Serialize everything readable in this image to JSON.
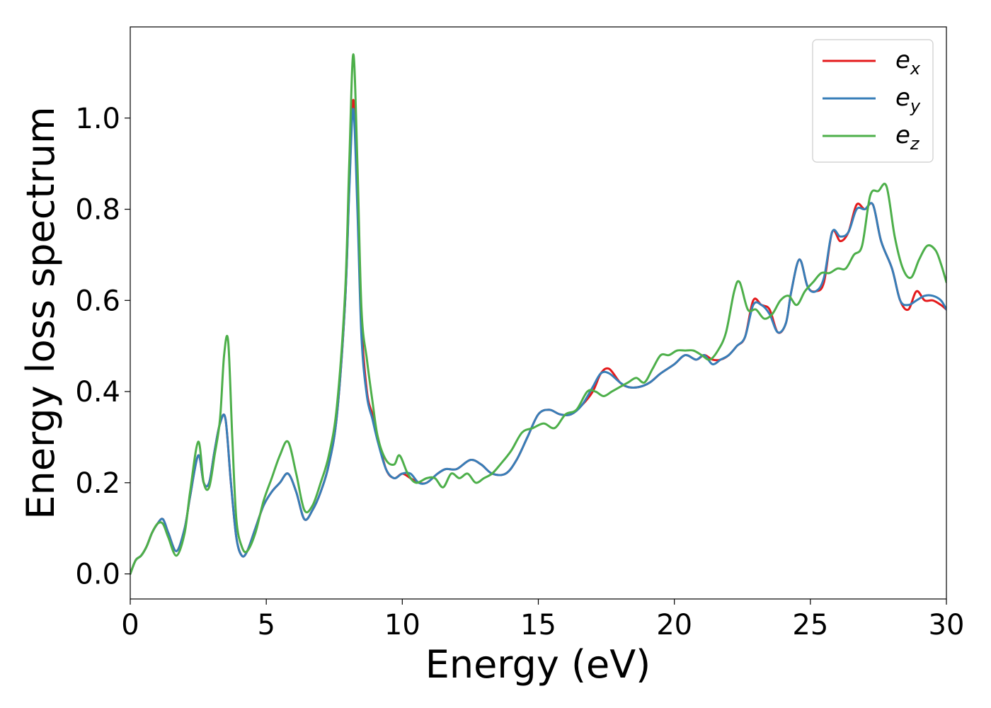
{
  "chart_data": {
    "type": "line",
    "xlabel": "Energy (eV)",
    "ylabel": "Energy loss spectrum",
    "xlim": [
      0,
      30
    ],
    "ylim": [
      -0.055,
      1.2
    ],
    "xticks": [
      0,
      5,
      10,
      15,
      20,
      25,
      30
    ],
    "xtick_labels": [
      "0",
      "5",
      "10",
      "15",
      "20",
      "25",
      "30"
    ],
    "yticks": [
      0.0,
      0.2,
      0.4,
      0.6,
      0.8,
      1.0
    ],
    "ytick_labels": [
      "0.0",
      "0.2",
      "0.4",
      "0.6",
      "0.8",
      "1.0"
    ],
    "grid": false,
    "legend_position": "top-right",
    "series": [
      {
        "name": "e",
        "sub": "x",
        "color": "#e41a1c",
        "x": [
          0,
          0.2,
          0.4,
          0.6,
          0.8,
          1.0,
          1.2,
          1.4,
          1.7,
          2.0,
          2.2,
          2.5,
          2.7,
          2.9,
          3.1,
          3.3,
          3.5,
          3.7,
          3.9,
          4.1,
          4.3,
          4.6,
          4.9,
          5.2,
          5.5,
          5.8,
          6.1,
          6.4,
          6.7,
          7.0,
          7.3,
          7.6,
          7.9,
          8.05,
          8.2,
          8.35,
          8.5,
          8.7,
          8.9,
          9.1,
          9.4,
          9.7,
          10.0,
          10.3,
          10.6,
          10.9,
          11.3,
          11.6,
          12.0,
          12.5,
          12.9,
          13.3,
          13.8,
          14.2,
          14.6,
          15.0,
          15.4,
          15.8,
          16.2,
          16.6,
          17.0,
          17.3,
          17.6,
          18.0,
          18.3,
          18.7,
          19.1,
          19.5,
          20.0,
          20.4,
          20.8,
          21.1,
          21.4,
          21.7,
          22.0,
          22.3,
          22.6,
          22.9,
          23.2,
          23.5,
          23.8,
          24.1,
          24.3,
          24.6,
          24.9,
          25.2,
          25.5,
          25.8,
          26.1,
          26.4,
          26.7,
          27.0,
          27.3,
          27.6,
          28.0,
          28.3,
          28.6,
          28.9,
          29.2,
          29.5,
          29.8,
          30.0
        ],
        "y": [
          0.0,
          0.03,
          0.04,
          0.06,
          0.09,
          0.11,
          0.12,
          0.09,
          0.05,
          0.1,
          0.17,
          0.26,
          0.2,
          0.2,
          0.27,
          0.33,
          0.34,
          0.2,
          0.08,
          0.04,
          0.05,
          0.1,
          0.15,
          0.18,
          0.2,
          0.22,
          0.18,
          0.12,
          0.14,
          0.18,
          0.24,
          0.35,
          0.6,
          0.85,
          1.04,
          0.85,
          0.55,
          0.4,
          0.35,
          0.3,
          0.23,
          0.21,
          0.22,
          0.21,
          0.2,
          0.2,
          0.22,
          0.23,
          0.23,
          0.25,
          0.24,
          0.22,
          0.22,
          0.25,
          0.3,
          0.35,
          0.36,
          0.35,
          0.35,
          0.37,
          0.4,
          0.44,
          0.45,
          0.42,
          0.41,
          0.41,
          0.42,
          0.44,
          0.46,
          0.48,
          0.47,
          0.48,
          0.47,
          0.47,
          0.48,
          0.5,
          0.52,
          0.6,
          0.59,
          0.58,
          0.53,
          0.55,
          0.62,
          0.69,
          0.63,
          0.62,
          0.64,
          0.75,
          0.73,
          0.75,
          0.81,
          0.8,
          0.81,
          0.73,
          0.67,
          0.6,
          0.58,
          0.62,
          0.6,
          0.6,
          0.59,
          0.58
        ]
      },
      {
        "name": "e",
        "sub": "y",
        "color": "#377eb8",
        "x": [
          0,
          0.2,
          0.4,
          0.6,
          0.8,
          1.0,
          1.2,
          1.4,
          1.7,
          2.0,
          2.2,
          2.5,
          2.7,
          2.9,
          3.1,
          3.3,
          3.5,
          3.7,
          3.9,
          4.1,
          4.3,
          4.6,
          4.9,
          5.2,
          5.5,
          5.8,
          6.1,
          6.4,
          6.7,
          7.0,
          7.3,
          7.6,
          7.9,
          8.05,
          8.2,
          8.35,
          8.5,
          8.7,
          8.9,
          9.1,
          9.4,
          9.7,
          10.0,
          10.3,
          10.6,
          10.9,
          11.3,
          11.6,
          12.0,
          12.5,
          12.9,
          13.3,
          13.8,
          14.2,
          14.6,
          15.0,
          15.4,
          15.8,
          16.2,
          16.6,
          17.0,
          17.3,
          17.6,
          18.0,
          18.3,
          18.7,
          19.1,
          19.5,
          20.0,
          20.4,
          20.8,
          21.1,
          21.4,
          21.7,
          22.0,
          22.3,
          22.6,
          22.9,
          23.2,
          23.5,
          23.8,
          24.1,
          24.3,
          24.6,
          24.9,
          25.2,
          25.5,
          25.8,
          26.1,
          26.4,
          26.7,
          27.0,
          27.3,
          27.6,
          28.0,
          28.3,
          28.6,
          28.9,
          29.2,
          29.5,
          29.8,
          30.0
        ],
        "y": [
          0.0,
          0.03,
          0.04,
          0.06,
          0.09,
          0.11,
          0.12,
          0.09,
          0.05,
          0.1,
          0.17,
          0.26,
          0.2,
          0.2,
          0.27,
          0.33,
          0.34,
          0.2,
          0.08,
          0.04,
          0.05,
          0.1,
          0.15,
          0.18,
          0.2,
          0.22,
          0.18,
          0.12,
          0.14,
          0.18,
          0.24,
          0.35,
          0.6,
          0.84,
          1.02,
          0.8,
          0.52,
          0.39,
          0.34,
          0.29,
          0.23,
          0.21,
          0.22,
          0.22,
          0.2,
          0.2,
          0.22,
          0.23,
          0.23,
          0.25,
          0.24,
          0.22,
          0.22,
          0.25,
          0.3,
          0.35,
          0.36,
          0.35,
          0.35,
          0.37,
          0.41,
          0.44,
          0.44,
          0.42,
          0.41,
          0.41,
          0.42,
          0.44,
          0.46,
          0.48,
          0.47,
          0.48,
          0.46,
          0.47,
          0.48,
          0.5,
          0.52,
          0.59,
          0.59,
          0.57,
          0.53,
          0.55,
          0.62,
          0.69,
          0.63,
          0.62,
          0.65,
          0.75,
          0.74,
          0.75,
          0.8,
          0.8,
          0.81,
          0.73,
          0.67,
          0.6,
          0.59,
          0.6,
          0.61,
          0.61,
          0.6,
          0.58
        ]
      },
      {
        "name": "e",
        "sub": "z",
        "color": "#4daf4a",
        "x": [
          0,
          0.2,
          0.4,
          0.6,
          0.8,
          1.0,
          1.2,
          1.4,
          1.7,
          2.0,
          2.2,
          2.5,
          2.7,
          2.9,
          3.1,
          3.3,
          3.45,
          3.6,
          3.75,
          3.9,
          4.1,
          4.3,
          4.6,
          4.9,
          5.2,
          5.5,
          5.8,
          6.1,
          6.4,
          6.7,
          7.0,
          7.3,
          7.6,
          7.9,
          8.05,
          8.2,
          8.35,
          8.5,
          8.7,
          8.9,
          9.1,
          9.4,
          9.7,
          9.9,
          10.2,
          10.5,
          10.9,
          11.2,
          11.5,
          11.8,
          12.1,
          12.4,
          12.7,
          13.0,
          13.3,
          13.6,
          14.0,
          14.4,
          14.8,
          15.2,
          15.6,
          16.0,
          16.4,
          16.8,
          17.1,
          17.4,
          17.7,
          18.0,
          18.3,
          18.6,
          18.9,
          19.2,
          19.5,
          19.8,
          20.1,
          20.4,
          20.7,
          21.0,
          21.3,
          21.6,
          21.9,
          22.2,
          22.4,
          22.7,
          23.0,
          23.3,
          23.6,
          23.9,
          24.2,
          24.5,
          24.8,
          25.1,
          25.4,
          25.7,
          26.0,
          26.3,
          26.6,
          26.9,
          27.2,
          27.5,
          27.8,
          28.1,
          28.4,
          28.7,
          29.0,
          29.3,
          29.6,
          29.8,
          30.0
        ],
        "y": [
          0.0,
          0.03,
          0.04,
          0.06,
          0.09,
          0.11,
          0.11,
          0.08,
          0.04,
          0.09,
          0.18,
          0.29,
          0.2,
          0.19,
          0.26,
          0.34,
          0.48,
          0.51,
          0.3,
          0.12,
          0.06,
          0.05,
          0.09,
          0.16,
          0.21,
          0.26,
          0.29,
          0.22,
          0.14,
          0.15,
          0.2,
          0.26,
          0.37,
          0.62,
          0.9,
          1.14,
          0.9,
          0.58,
          0.47,
          0.38,
          0.3,
          0.25,
          0.24,
          0.26,
          0.22,
          0.2,
          0.21,
          0.21,
          0.19,
          0.22,
          0.21,
          0.22,
          0.2,
          0.21,
          0.22,
          0.24,
          0.27,
          0.31,
          0.32,
          0.33,
          0.32,
          0.35,
          0.36,
          0.4,
          0.4,
          0.39,
          0.4,
          0.41,
          0.42,
          0.43,
          0.42,
          0.45,
          0.48,
          0.48,
          0.49,
          0.49,
          0.49,
          0.48,
          0.47,
          0.49,
          0.53,
          0.62,
          0.64,
          0.58,
          0.58,
          0.56,
          0.57,
          0.6,
          0.61,
          0.59,
          0.62,
          0.64,
          0.66,
          0.66,
          0.67,
          0.67,
          0.7,
          0.72,
          0.83,
          0.84,
          0.85,
          0.74,
          0.67,
          0.65,
          0.69,
          0.72,
          0.71,
          0.68,
          0.64
        ]
      }
    ]
  }
}
